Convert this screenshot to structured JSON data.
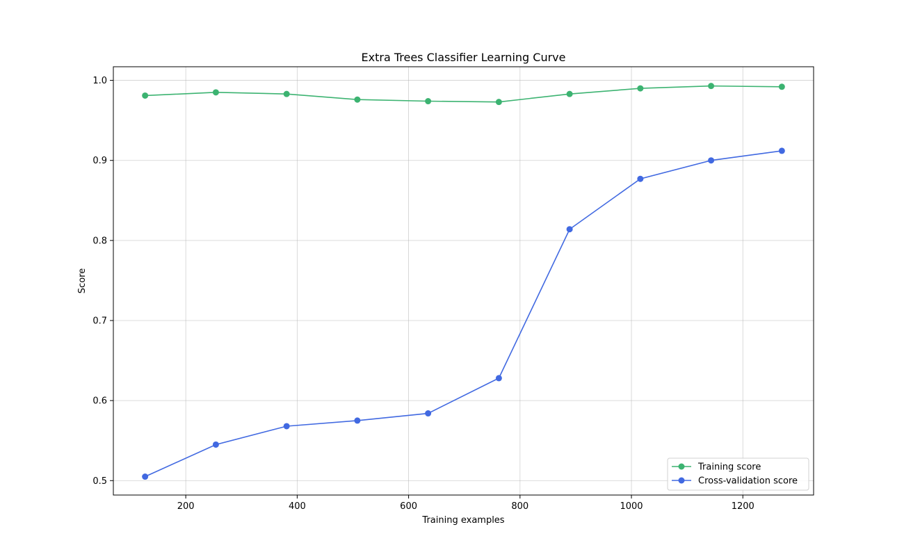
{
  "chart_data": {
    "type": "line",
    "title": "Extra Trees Classifier Learning Curve",
    "xlabel": "Training examples",
    "ylabel": "Score",
    "xlim": [
      70,
      1327
    ],
    "ylim": [
      0.482,
      1.017
    ],
    "xticks": [
      200,
      400,
      600,
      800,
      1000,
      1200
    ],
    "yticks": [
      0.5,
      0.6,
      0.7,
      0.8,
      0.9,
      1.0
    ],
    "xtick_labels": [
      "200",
      "400",
      "600",
      "800",
      "1000",
      "1200"
    ],
    "ytick_labels": [
      "0.5",
      "0.6",
      "0.7",
      "0.8",
      "0.9",
      "1.0"
    ],
    "grid": true,
    "legend_position": "bottom-right",
    "x": [
      127,
      254,
      381,
      508,
      635,
      762,
      889,
      1016,
      1143,
      1270
    ],
    "series": [
      {
        "name": "Training score",
        "color": "#3cb371",
        "values": [
          0.981,
          0.985,
          0.983,
          0.976,
          0.974,
          0.973,
          0.983,
          0.99,
          0.993,
          0.992
        ]
      },
      {
        "name": "Cross-validation score",
        "color": "#4169e1",
        "values": [
          0.505,
          0.545,
          0.568,
          0.575,
          0.584,
          0.628,
          0.814,
          0.877,
          0.9,
          0.912
        ]
      }
    ]
  }
}
